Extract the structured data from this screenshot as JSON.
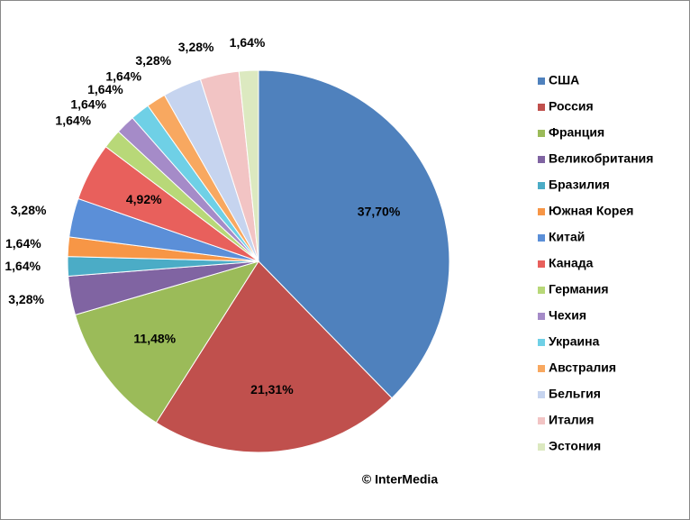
{
  "chart_data": {
    "type": "pie",
    "categories": [
      "США",
      "Россия",
      "Франция",
      "Великобритания",
      "Бразилия",
      "Южная Корея",
      "Китай",
      "Канада",
      "Германия",
      "Чехия",
      "Украина",
      "Австралия",
      "Бельгия",
      "Италия",
      "Эстония"
    ],
    "values": [
      37.7,
      21.31,
      11.48,
      3.28,
      1.64,
      1.64,
      3.28,
      4.92,
      1.64,
      1.64,
      1.64,
      1.64,
      3.28,
      3.28,
      1.64
    ],
    "value_labels": [
      "37,70%",
      "21,31%",
      "11,48%",
      "3,28%",
      "1,64%",
      "1,64%",
      "3,28%",
      "4,92%",
      "1,64%",
      "1,64%",
      "1,64%",
      "1,64%",
      "3,28%",
      "3,28%",
      "1,64%"
    ],
    "colors": [
      "#4f81bd",
      "#c0504d",
      "#9bbb59",
      "#8064a2",
      "#4bacc6",
      "#f79646",
      "#5b8fd8",
      "#e8605c",
      "#b8d878",
      "#a58bc8",
      "#6fd0e6",
      "#f8a860",
      "#c6d4ef",
      "#f2c4c4",
      "#dce9c0"
    ],
    "legend": "right",
    "annotation": "© InterMedia"
  }
}
